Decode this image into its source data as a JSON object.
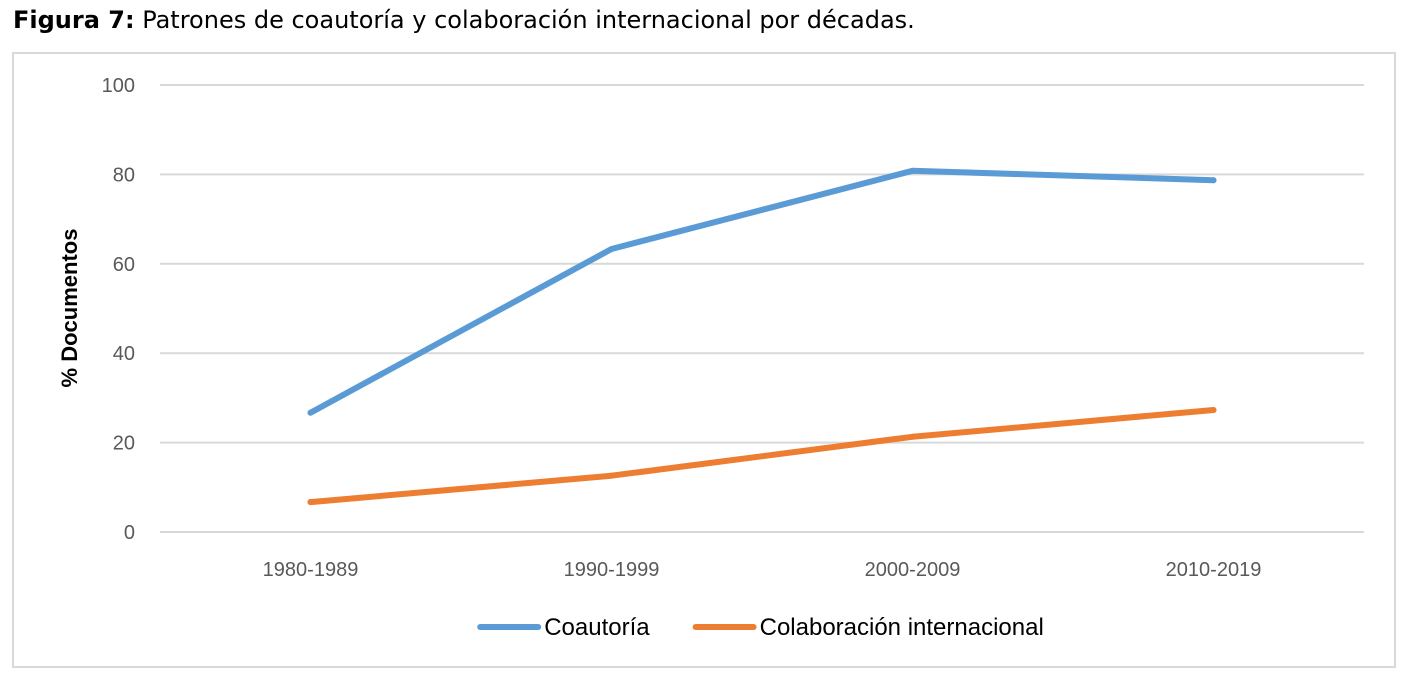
{
  "caption": {
    "label": "Figura 7:",
    "text": " Patrones de coautoría y colaboración internacional por décadas."
  },
  "chart_data": {
    "type": "line",
    "title": "",
    "xlabel": "",
    "ylabel": "% Documentos",
    "ylim": [
      0,
      100
    ],
    "yticks": [
      0,
      20,
      40,
      60,
      80,
      100
    ],
    "grid": true,
    "legend_position": "bottom",
    "categories": [
      "1980-1989",
      "1990-1999",
      "2000-2009",
      "2010-2019"
    ],
    "series": [
      {
        "name": "Coautoría",
        "values": [
          26.7,
          63.3,
          80.8,
          78.7
        ],
        "color": "#5b9bd5"
      },
      {
        "name": "Colaboración internacional",
        "values": [
          6.7,
          12.6,
          21.3,
          27.3
        ],
        "color": "#ed7d31"
      }
    ]
  }
}
